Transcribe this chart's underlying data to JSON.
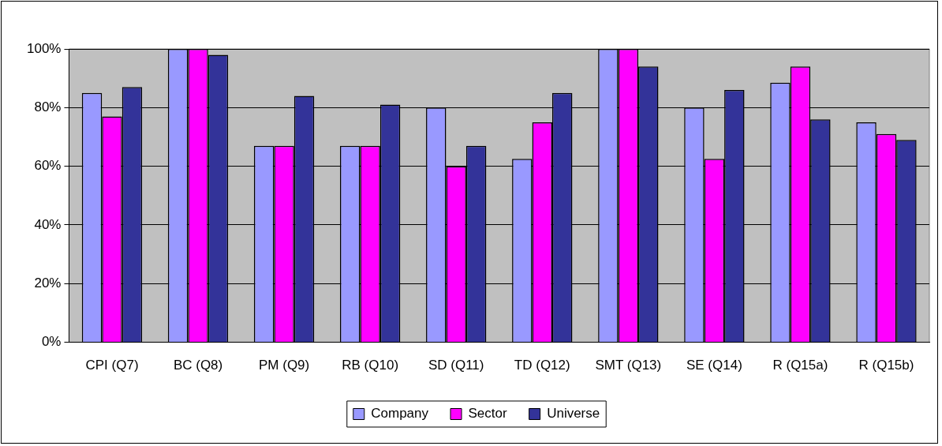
{
  "chart_data": {
    "type": "bar",
    "categories": [
      "CPI (Q7)",
      "BC (Q8)",
      "PM (Q9)",
      "RB (Q10)",
      "SD (Q11)",
      "TD (Q12)",
      "SMT (Q13)",
      "SE (Q14)",
      "R (Q15a)",
      "R (Q15b)"
    ],
    "series": [
      {
        "name": "Company",
        "color": "#9999ff",
        "values": [
          85,
          100,
          67,
          67,
          80,
          62.5,
          100,
          80,
          88.5,
          75
        ]
      },
      {
        "name": "Sector",
        "color": "#ff00ff",
        "values": [
          77,
          100,
          67,
          67,
          60,
          75,
          100,
          62.5,
          94,
          71
        ]
      },
      {
        "name": "Universe",
        "color": "#333399",
        "values": [
          87,
          98,
          84,
          81,
          67,
          85,
          94,
          86,
          76,
          69
        ]
      }
    ],
    "ylim": [
      0,
      100
    ],
    "yticks": [
      {
        "value": 0,
        "label": "0%"
      },
      {
        "value": 20,
        "label": "20%"
      },
      {
        "value": 40,
        "label": "40%"
      },
      {
        "value": 60,
        "label": "60%"
      },
      {
        "value": 80,
        "label": "80%"
      },
      {
        "value": 100,
        "label": "100%"
      }
    ],
    "grid": "y",
    "legend": "bottom"
  }
}
